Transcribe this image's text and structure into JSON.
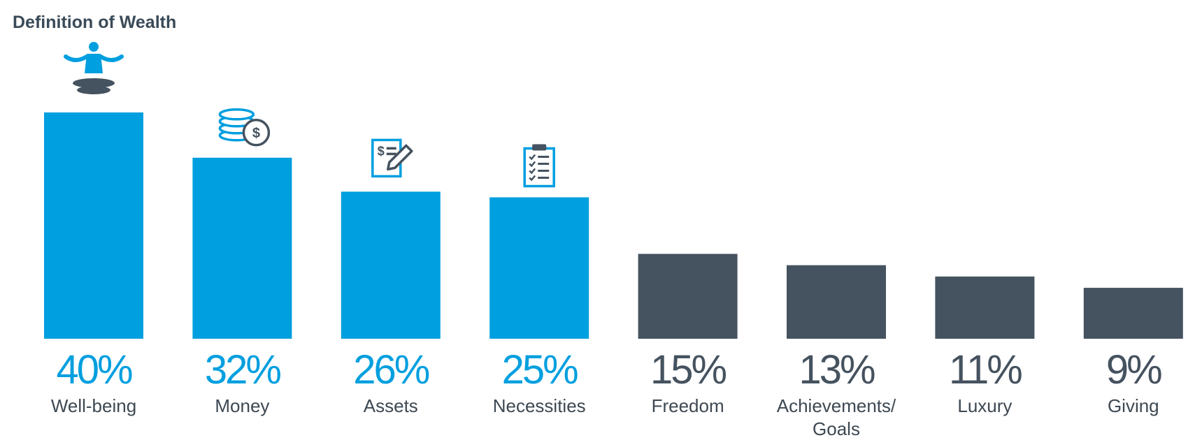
{
  "colors": {
    "highlight": "#009fdf",
    "muted": "#45525f",
    "text": "#3d4852",
    "title": "#3a4a58"
  },
  "chart_data": {
    "type": "bar",
    "title": "Definition of Wealth",
    "categories": [
      "Well-being",
      "Money",
      "Assets",
      "Necessities",
      "Freedom",
      "Achievements/ Goals",
      "Luxury",
      "Giving"
    ],
    "category_lines": [
      [
        "Well-being"
      ],
      [
        "Money"
      ],
      [
        "Assets"
      ],
      [
        "Necessities"
      ],
      [
        "Freedom"
      ],
      [
        "Achievements/",
        "Goals"
      ],
      [
        "Luxury"
      ],
      [
        "Giving"
      ]
    ],
    "values": [
      40,
      32,
      26,
      25,
      15,
      13,
      11,
      9
    ],
    "value_labels": [
      "40%",
      "32%",
      "26%",
      "25%",
      "15%",
      "13%",
      "11%",
      "9%"
    ],
    "highlighted": [
      true,
      true,
      true,
      true,
      false,
      false,
      false,
      false
    ],
    "icons": [
      "meditation-icon",
      "coins-dollar-icon",
      "document-pen-icon",
      "clipboard-checklist-icon",
      null,
      null,
      null,
      null
    ],
    "ylim": [
      0,
      40
    ],
    "grid": false,
    "legend": "none",
    "xlabel": "",
    "ylabel": ""
  }
}
